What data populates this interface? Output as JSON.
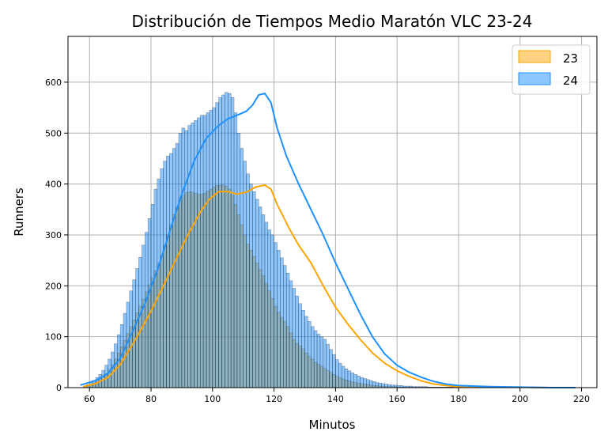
{
  "chart_data": {
    "type": "bar",
    "title": "Distribución de Tiempos Medio Maratón VLC 23-24",
    "xlabel": "Minutos",
    "ylabel": "Runners",
    "xlim": [
      53,
      225
    ],
    "ylim": [
      0,
      690
    ],
    "x_ticks": [
      60,
      80,
      100,
      120,
      140,
      160,
      180,
      200,
      220
    ],
    "y_ticks": [
      0,
      100,
      200,
      300,
      400,
      500,
      600
    ],
    "grid": true,
    "legend_position": "top-right",
    "bin_start": 58,
    "bin_width": 1,
    "series": [
      {
        "name": "23",
        "color": "#ffa500",
        "values": [
          2,
          4,
          6,
          9,
          12,
          17,
          22,
          28,
          36,
          45,
          56,
          68,
          80,
          93,
          106,
          120,
          133,
          147,
          160,
          174,
          188,
          202,
          216,
          230,
          245,
          260,
          280,
          300,
          320,
          340,
          355,
          368,
          378,
          383,
          385,
          384,
          382,
          380,
          380,
          382,
          386,
          390,
          394,
          397,
          398,
          398,
          396,
          390,
          378,
          360,
          340,
          320,
          300,
          282,
          270,
          258,
          245,
          232,
          220,
          205,
          190,
          175,
          160,
          148,
          138,
          130,
          120,
          108,
          95,
          87,
          82,
          76,
          68,
          62,
          56,
          50,
          46,
          42,
          38,
          34,
          30,
          26,
          23,
          20,
          17,
          15,
          13,
          11,
          10,
          9,
          8,
          7,
          6,
          5,
          4,
          4,
          3,
          3,
          2,
          2,
          2,
          2,
          1,
          1,
          1,
          1,
          1,
          1,
          1,
          1,
          1,
          1,
          1,
          1,
          1,
          1,
          1,
          1,
          1,
          1,
          1,
          1,
          1,
          1,
          1,
          1,
          1,
          1,
          1,
          1,
          1,
          1,
          1,
          1,
          1,
          1,
          1,
          1,
          1,
          1,
          1,
          1,
          1,
          1,
          1,
          1,
          1,
          1,
          1,
          1,
          1,
          1,
          1,
          1,
          1,
          1,
          1,
          1,
          1,
          1
        ],
        "kde": [
          [
            58,
            2
          ],
          [
            62,
            8
          ],
          [
            66,
            20
          ],
          [
            70,
            45
          ],
          [
            75,
            95
          ],
          [
            80,
            150
          ],
          [
            84,
            200
          ],
          [
            88,
            250
          ],
          [
            92,
            300
          ],
          [
            96,
            345
          ],
          [
            99,
            370
          ],
          [
            102,
            385
          ],
          [
            105,
            385
          ],
          [
            108,
            380
          ],
          [
            111,
            384
          ],
          [
            114,
            394
          ],
          [
            117,
            398
          ],
          [
            119,
            390
          ],
          [
            121,
            360
          ],
          [
            125,
            312
          ],
          [
            128,
            280
          ],
          [
            132,
            245
          ],
          [
            136,
            200
          ],
          [
            140,
            158
          ],
          [
            144,
            125
          ],
          [
            148,
            95
          ],
          [
            152,
            68
          ],
          [
            156,
            48
          ],
          [
            160,
            33
          ],
          [
            164,
            22
          ],
          [
            168,
            13
          ],
          [
            172,
            7
          ],
          [
            176,
            4
          ],
          [
            180,
            2
          ],
          [
            190,
            1
          ],
          [
            200,
            1
          ],
          [
            210,
            0
          ],
          [
            218,
            0
          ]
        ]
      },
      {
        "name": "24",
        "color": "#1e90ff",
        "values": [
          3,
          6,
          10,
          14,
          20,
          26,
          34,
          44,
          56,
          70,
          86,
          104,
          124,
          146,
          168,
          190,
          212,
          234,
          256,
          280,
          305,
          332,
          360,
          390,
          410,
          430,
          445,
          455,
          460,
          470,
          480,
          500,
          510,
          505,
          515,
          520,
          525,
          530,
          535,
          535,
          540,
          545,
          550,
          560,
          570,
          575,
          580,
          578,
          570,
          540,
          500,
          470,
          445,
          420,
          400,
          385,
          370,
          355,
          340,
          325,
          310,
          300,
          285,
          270,
          255,
          240,
          225,
          210,
          195,
          180,
          165,
          152,
          140,
          130,
          120,
          112,
          105,
          100,
          95,
          85,
          75,
          65,
          55,
          48,
          42,
          37,
          33,
          29,
          26,
          23,
          20,
          18,
          16,
          14,
          12,
          10,
          9,
          8,
          7,
          6,
          5,
          5,
          4,
          4,
          3,
          3,
          3,
          2,
          2,
          2,
          2,
          2,
          1,
          1,
          1,
          1,
          1,
          1,
          1,
          1,
          1,
          1,
          1,
          1,
          1,
          1,
          1,
          1,
          1,
          1,
          1,
          1,
          1,
          1,
          1,
          1,
          1,
          1,
          1,
          1,
          1,
          1,
          1,
          1,
          1,
          1,
          1,
          1,
          1,
          1,
          1,
          1,
          1,
          1,
          1,
          1,
          1,
          1,
          1,
          1
        ],
        "kde": [
          [
            57,
            5
          ],
          [
            62,
            14
          ],
          [
            66,
            28
          ],
          [
            70,
            58
          ],
          [
            74,
            110
          ],
          [
            78,
            165
          ],
          [
            82,
            230
          ],
          [
            86,
            305
          ],
          [
            90,
            380
          ],
          [
            94,
            445
          ],
          [
            98,
            490
          ],
          [
            102,
            515
          ],
          [
            105,
            528
          ],
          [
            108,
            535
          ],
          [
            111,
            543
          ],
          [
            113,
            555
          ],
          [
            115,
            575
          ],
          [
            117,
            578
          ],
          [
            119,
            560
          ],
          [
            121,
            510
          ],
          [
            124,
            455
          ],
          [
            128,
            400
          ],
          [
            132,
            350
          ],
          [
            136,
            300
          ],
          [
            140,
            245
          ],
          [
            144,
            195
          ],
          [
            148,
            145
          ],
          [
            152,
            100
          ],
          [
            156,
            66
          ],
          [
            160,
            44
          ],
          [
            164,
            30
          ],
          [
            168,
            20
          ],
          [
            172,
            12
          ],
          [
            176,
            7
          ],
          [
            180,
            4
          ],
          [
            190,
            2
          ],
          [
            200,
            1
          ],
          [
            210,
            0
          ],
          [
            218,
            0
          ]
        ]
      }
    ]
  }
}
